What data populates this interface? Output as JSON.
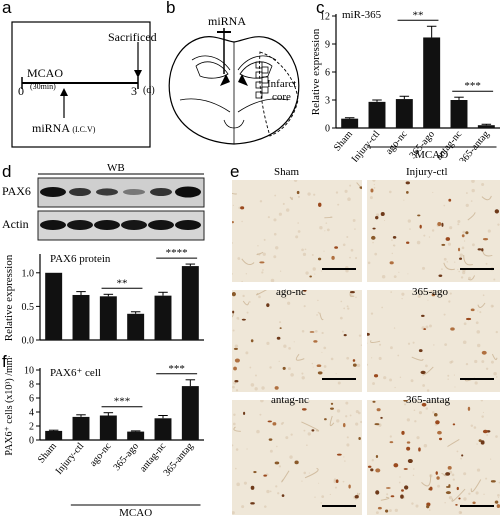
{
  "figure": {
    "panel_letters": [
      "a",
      "b",
      "c",
      "d",
      "e",
      "f"
    ],
    "panel_a": {
      "sacrificed": "Sacrificed",
      "mcao": "MCAO",
      "mcao_duration": "(30min)",
      "time_start": "0",
      "time_end": "3",
      "time_unit": "(d)",
      "mirna_label": "miRNA",
      "icv": "(I.C.V)"
    },
    "panel_b": {
      "mirna": "miRNA",
      "infarct": "Infarct",
      "core": "core"
    },
    "panel_d_blot": {
      "header": "WB",
      "row1": "PAX6",
      "row2": "Actin"
    },
    "panel_e": {
      "labels": [
        "Sham",
        "Injury-ctl",
        "ago-nc",
        "365-ago",
        "antag-nc",
        "365-antag"
      ]
    },
    "shared_group_label": "MCAO"
  },
  "chart_data": [
    {
      "id": "c",
      "type": "bar",
      "title": "miR-365",
      "ylabel": "Relative expression",
      "ylim": [
        0,
        12
      ],
      "yticks": [
        0,
        3,
        6,
        9,
        12
      ],
      "categories": [
        "Sham",
        "Injury-ctl",
        "ago-nc",
        "365-ago",
        "antag-nc",
        "365-antag"
      ],
      "values": [
        1.0,
        2.8,
        3.1,
        9.7,
        3.0,
        0.3
      ],
      "errors": [
        0.1,
        0.2,
        0.3,
        1.2,
        0.3,
        0.1
      ],
      "significance": [
        {
          "from": 2,
          "to": 3,
          "label": "**"
        },
        {
          "from": 4,
          "to": 5,
          "label": "***"
        }
      ],
      "group_label": "MCAO"
    },
    {
      "id": "d",
      "type": "bar",
      "title": "PAX6 protein",
      "ylabel": "Relative expression",
      "ylim": [
        0,
        1.25
      ],
      "yticks": [
        0.0,
        0.5,
        1.0
      ],
      "categories": [
        "Sham",
        "Injury-ctl",
        "ago-nc",
        "365-ago",
        "antag-nc",
        "365-antag"
      ],
      "values": [
        1.0,
        0.67,
        0.65,
        0.39,
        0.66,
        1.1
      ],
      "errors": [
        0.0,
        0.05,
        0.03,
        0.03,
        0.05,
        0.03
      ],
      "significance": [
        {
          "from": 2,
          "to": 3,
          "label": "**"
        },
        {
          "from": 4,
          "to": 5,
          "label": "****"
        }
      ]
    },
    {
      "id": "f",
      "type": "bar",
      "title": "PAX6⁺ cell",
      "ylabel": "PAX6⁺ cells (x10³) /mm²",
      "ylim": [
        0,
        10
      ],
      "yticks": [
        0,
        2,
        4,
        6,
        8,
        10
      ],
      "categories": [
        "Sham",
        "Injury-ctl",
        "ago-nc",
        "365-ago",
        "antag-nc",
        "365-antag"
      ],
      "values": [
        1.3,
        3.3,
        3.5,
        1.2,
        3.1,
        7.7
      ],
      "errors": [
        0.1,
        0.3,
        0.4,
        0.1,
        0.4,
        0.9
      ],
      "significance": [
        {
          "from": 2,
          "to": 3,
          "label": "***"
        },
        {
          "from": 4,
          "to": 5,
          "label": "***"
        }
      ],
      "group_label": "MCAO"
    }
  ]
}
